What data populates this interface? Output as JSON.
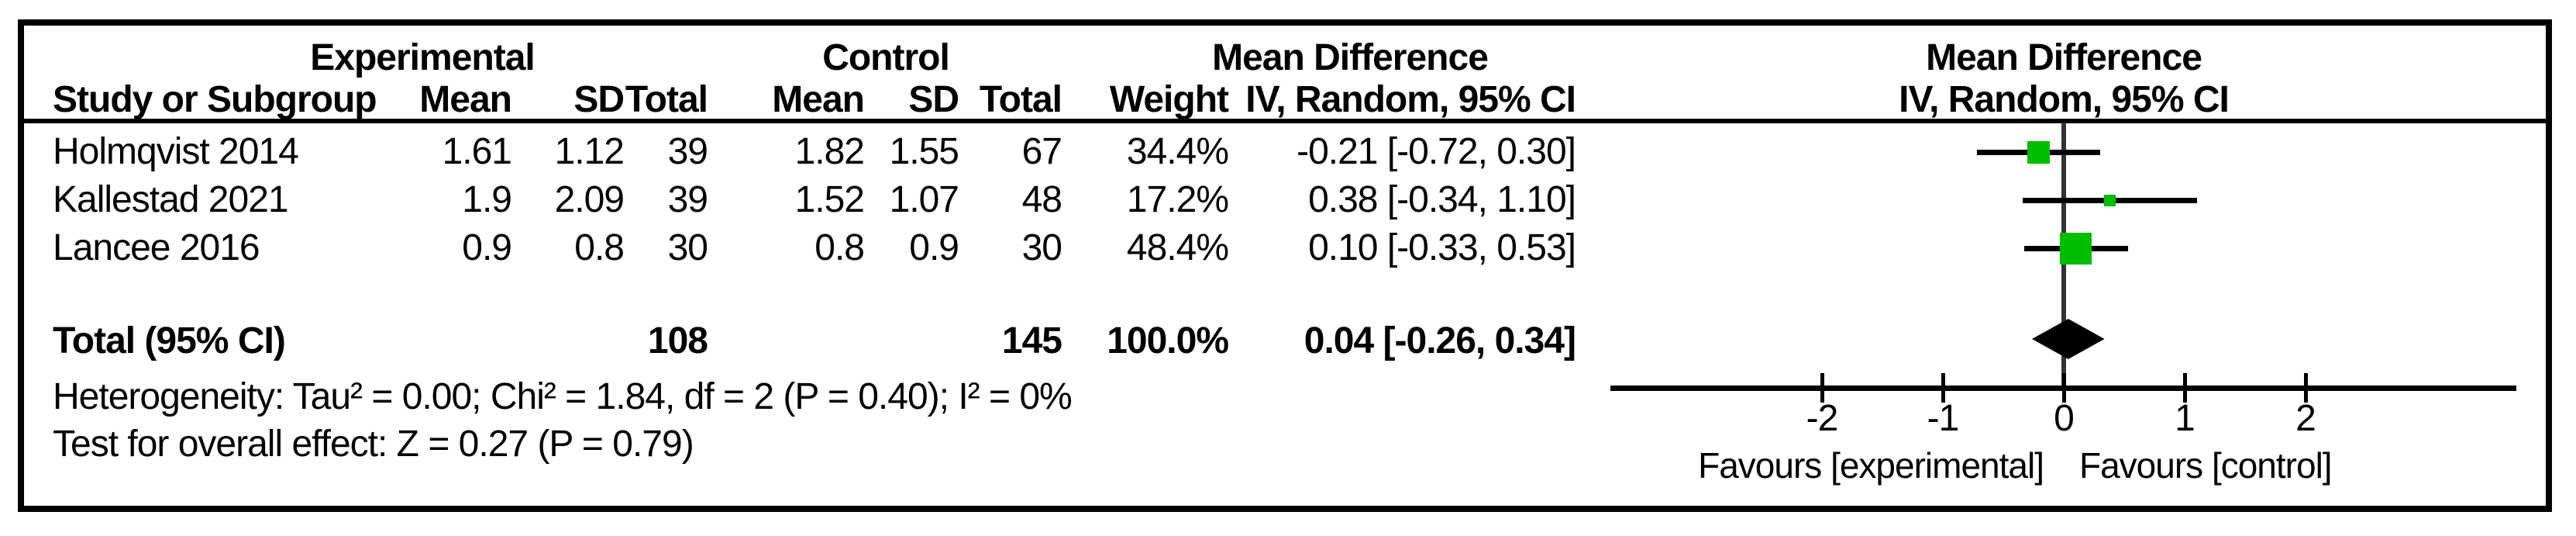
{
  "table": {
    "group_headers": {
      "experimental": "Experimental",
      "control": "Control",
      "mean_difference": "Mean Difference"
    },
    "col_headers": {
      "study": "Study or Subgroup",
      "mean_exp": "Mean",
      "sd_exp": "SD",
      "total_exp": "Total",
      "mean_ctrl": "Mean",
      "sd_ctrl": "SD",
      "total_ctrl": "Total",
      "weight": "Weight",
      "ci": "IV, Random, 95% CI"
    },
    "rows": [
      {
        "study": "Holmqvist 2014",
        "exp_mean": "1.61",
        "exp_sd": "1.12",
        "exp_total": "39",
        "ctrl_mean": "1.82",
        "ctrl_sd": "1.55",
        "ctrl_total": "67",
        "weight": "34.4%",
        "ci": "-0.21 [-0.72, 0.30]"
      },
      {
        "study": "Kallestad 2021",
        "exp_mean": "1.9",
        "exp_sd": "2.09",
        "exp_total": "39",
        "ctrl_mean": "1.52",
        "ctrl_sd": "1.07",
        "ctrl_total": "48",
        "weight": "17.2%",
        "ci": "0.38 [-0.34, 1.10]"
      },
      {
        "study": "Lancee 2016",
        "exp_mean": "0.9",
        "exp_sd": "0.8",
        "exp_total": "30",
        "ctrl_mean": "0.8",
        "ctrl_sd": "0.9",
        "ctrl_total": "30",
        "weight": "48.4%",
        "ci": "0.10 [-0.33, 0.53]"
      }
    ],
    "total_row": {
      "label": "Total (95% CI)",
      "exp_total": "108",
      "ctrl_total": "145",
      "weight": "100.0%",
      "ci": "0.04 [-0.26, 0.34]"
    },
    "footer": {
      "heterogeneity": "Heterogeneity: Tau² = 0.00; Chi² = 1.84, df = 2 (P = 0.40); I² = 0%",
      "overall_effect": "Test for overall effect: Z = 0.27 (P = 0.79)"
    }
  },
  "plot": {
    "title": "Mean Difference",
    "subtitle": "IV, Random, 95% CI"
  },
  "chart_data": {
    "type": "forest",
    "title": "Mean Difference",
    "method_label": "IV, Random, 95% CI",
    "x_axis": {
      "ticks": [
        -2,
        -1,
        0,
        1,
        2
      ],
      "tick_labels": [
        "-2",
        "-1",
        "0",
        "1",
        "2"
      ],
      "min": -3.75,
      "max": 3.75,
      "zero_line": 0
    },
    "studies": [
      {
        "name": "Holmqvist 2014",
        "md": -0.21,
        "ci_low": -0.72,
        "ci_high": 0.3,
        "weight_pct": 34.4
      },
      {
        "name": "Kallestad 2021",
        "md": 0.38,
        "ci_low": -0.34,
        "ci_high": 1.1,
        "weight_pct": 17.2
      },
      {
        "name": "Lancee 2016",
        "md": 0.1,
        "ci_low": -0.33,
        "ci_high": 0.53,
        "weight_pct": 48.4
      }
    ],
    "total": {
      "md": 0.04,
      "ci_low": -0.26,
      "ci_high": 0.34,
      "weight_pct": 100.0
    },
    "favours_left": "Favours [experimental]",
    "favours_right": "Favours [control]",
    "marker_color": "#00bd00",
    "diamond_color": "#000000",
    "line_color": "#000000",
    "zero_line_color": "#333333"
  }
}
